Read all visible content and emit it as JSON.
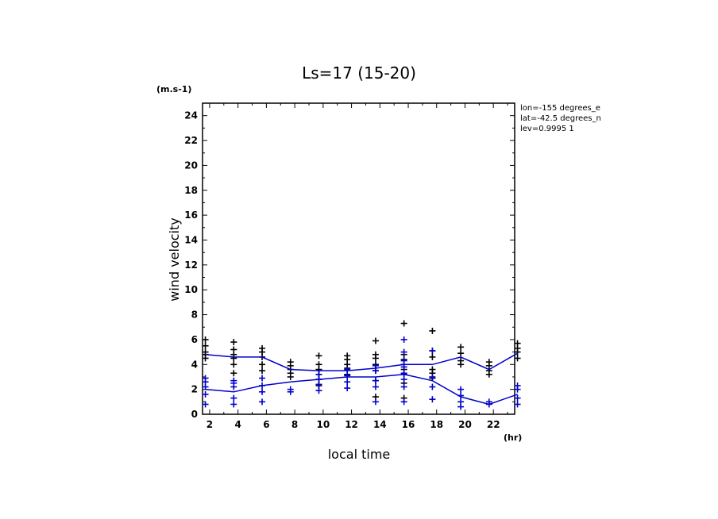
{
  "chart_data": {
    "type": "scatter",
    "title": "Ls=17 (15-20)",
    "xlabel": "local time",
    "ylabel": "wind velocity",
    "x_unit": "(hr)",
    "y_unit": "(m.s-1)",
    "xlim": [
      1.5,
      23.5
    ],
    "ylim": [
      0,
      25
    ],
    "x_ticks": [
      2,
      4,
      6,
      8,
      10,
      12,
      14,
      16,
      18,
      20,
      22
    ],
    "y_ticks": [
      0,
      2,
      4,
      6,
      8,
      10,
      12,
      14,
      16,
      18,
      20,
      22,
      24
    ],
    "grid": false,
    "annotations": [
      "lon=-155 degrees_e",
      "lat=-42.5 degrees_n",
      "lev=0.9995 1"
    ],
    "series": [
      {
        "color": "#000000",
        "marker": "+",
        "points": [
          [
            1.7,
            4.5
          ],
          [
            1.7,
            4.8
          ],
          [
            1.7,
            5.0
          ],
          [
            1.7,
            5.5
          ],
          [
            1.7,
            6.0
          ],
          [
            3.7,
            3.3
          ],
          [
            3.7,
            4.0
          ],
          [
            3.7,
            4.5
          ],
          [
            3.7,
            4.8
          ],
          [
            3.7,
            5.2
          ],
          [
            3.7,
            5.8
          ],
          [
            5.7,
            3.5
          ],
          [
            5.7,
            4.0
          ],
          [
            5.7,
            4.6
          ],
          [
            5.7,
            5.0
          ],
          [
            5.7,
            5.3
          ],
          [
            7.7,
            3.0
          ],
          [
            7.7,
            3.3
          ],
          [
            7.7,
            3.6
          ],
          [
            7.7,
            3.9
          ],
          [
            7.7,
            4.2
          ],
          [
            9.7,
            2.3
          ],
          [
            9.7,
            2.8
          ],
          [
            9.7,
            3.2
          ],
          [
            9.7,
            3.6
          ],
          [
            9.7,
            4.0
          ],
          [
            9.7,
            4.7
          ],
          [
            11.7,
            3.2
          ],
          [
            11.7,
            3.7
          ],
          [
            11.7,
            4.0
          ],
          [
            11.7,
            4.4
          ],
          [
            11.7,
            4.7
          ],
          [
            13.7,
            1.4
          ],
          [
            13.7,
            2.7
          ],
          [
            13.7,
            3.5
          ],
          [
            13.7,
            4.0
          ],
          [
            13.7,
            4.5
          ],
          [
            13.7,
            4.8
          ],
          [
            13.7,
            5.9
          ],
          [
            15.7,
            1.3
          ],
          [
            15.7,
            2.5
          ],
          [
            15.7,
            3.2
          ],
          [
            15.7,
            3.6
          ],
          [
            15.7,
            4.0
          ],
          [
            15.7,
            4.4
          ],
          [
            15.7,
            4.8
          ],
          [
            15.7,
            7.3
          ],
          [
            17.7,
            2.9
          ],
          [
            17.7,
            3.3
          ],
          [
            17.7,
            3.6
          ],
          [
            17.7,
            4.6
          ],
          [
            17.7,
            5.1
          ],
          [
            17.7,
            6.7
          ],
          [
            19.7,
            4.0
          ],
          [
            19.7,
            4.3
          ],
          [
            19.7,
            4.9
          ],
          [
            19.7,
            5.4
          ],
          [
            21.7,
            3.2
          ],
          [
            21.7,
            3.5
          ],
          [
            21.7,
            3.9
          ],
          [
            21.7,
            4.2
          ],
          [
            23.7,
            4.5
          ],
          [
            23.7,
            5.0
          ],
          [
            23.7,
            5.3
          ],
          [
            23.7,
            5.7
          ]
        ]
      },
      {
        "color": "#0000cc",
        "marker": "+",
        "points": [
          [
            1.7,
            0.8
          ],
          [
            1.7,
            1.6
          ],
          [
            1.7,
            2.2
          ],
          [
            1.7,
            2.6
          ],
          [
            1.7,
            2.9
          ],
          [
            3.7,
            0.8
          ],
          [
            3.7,
            1.3
          ],
          [
            3.7,
            2.2
          ],
          [
            3.7,
            2.5
          ],
          [
            3.7,
            2.7
          ],
          [
            5.7,
            1.0
          ],
          [
            5.7,
            1.8
          ],
          [
            5.7,
            2.3
          ],
          [
            5.7,
            2.9
          ],
          [
            7.7,
            1.8
          ],
          [
            7.7,
            2.0
          ],
          [
            9.7,
            1.9
          ],
          [
            9.7,
            2.4
          ],
          [
            9.7,
            2.8
          ],
          [
            9.7,
            3.2
          ],
          [
            11.7,
            2.1
          ],
          [
            11.7,
            2.6
          ],
          [
            11.7,
            3.1
          ],
          [
            11.7,
            3.6
          ],
          [
            13.7,
            1.0
          ],
          [
            13.7,
            2.2
          ],
          [
            13.7,
            2.7
          ],
          [
            13.7,
            3.5
          ],
          [
            13.7,
            3.9
          ],
          [
            15.7,
            1.0
          ],
          [
            15.7,
            2.2
          ],
          [
            15.7,
            2.8
          ],
          [
            15.7,
            3.3
          ],
          [
            15.7,
            3.8
          ],
          [
            15.7,
            4.3
          ],
          [
            15.7,
            5.0
          ],
          [
            15.7,
            6.0
          ],
          [
            17.7,
            1.2
          ],
          [
            17.7,
            2.2
          ],
          [
            17.7,
            3.0
          ],
          [
            17.7,
            5.1
          ],
          [
            19.7,
            0.6
          ],
          [
            19.7,
            1.0
          ],
          [
            19.7,
            1.5
          ],
          [
            19.7,
            2.0
          ],
          [
            21.7,
            0.8
          ],
          [
            21.7,
            1.0
          ],
          [
            23.7,
            0.8
          ],
          [
            23.7,
            1.3
          ],
          [
            23.7,
            2.0
          ],
          [
            23.7,
            2.3
          ]
        ]
      },
      {
        "color": "#0000cc",
        "marker": "line",
        "x": [
          1.7,
          3.7,
          5.7,
          7.7,
          9.7,
          11.7,
          13.7,
          15.7,
          17.7,
          19.7,
          21.7,
          23.7
        ],
        "values": [
          4.8,
          4.6,
          4.6,
          3.6,
          3.5,
          3.5,
          3.7,
          4.0,
          4.0,
          4.6,
          3.6,
          4.9
        ]
      },
      {
        "color": "#0000cc",
        "marker": "line",
        "x": [
          1.7,
          3.7,
          5.7,
          7.7,
          9.7,
          11.7,
          13.7,
          15.7,
          17.7,
          19.7,
          21.7,
          23.7
        ],
        "values": [
          2.0,
          1.8,
          2.3,
          2.6,
          2.8,
          3.0,
          3.0,
          3.2,
          2.7,
          1.4,
          0.8,
          1.6
        ]
      }
    ]
  }
}
